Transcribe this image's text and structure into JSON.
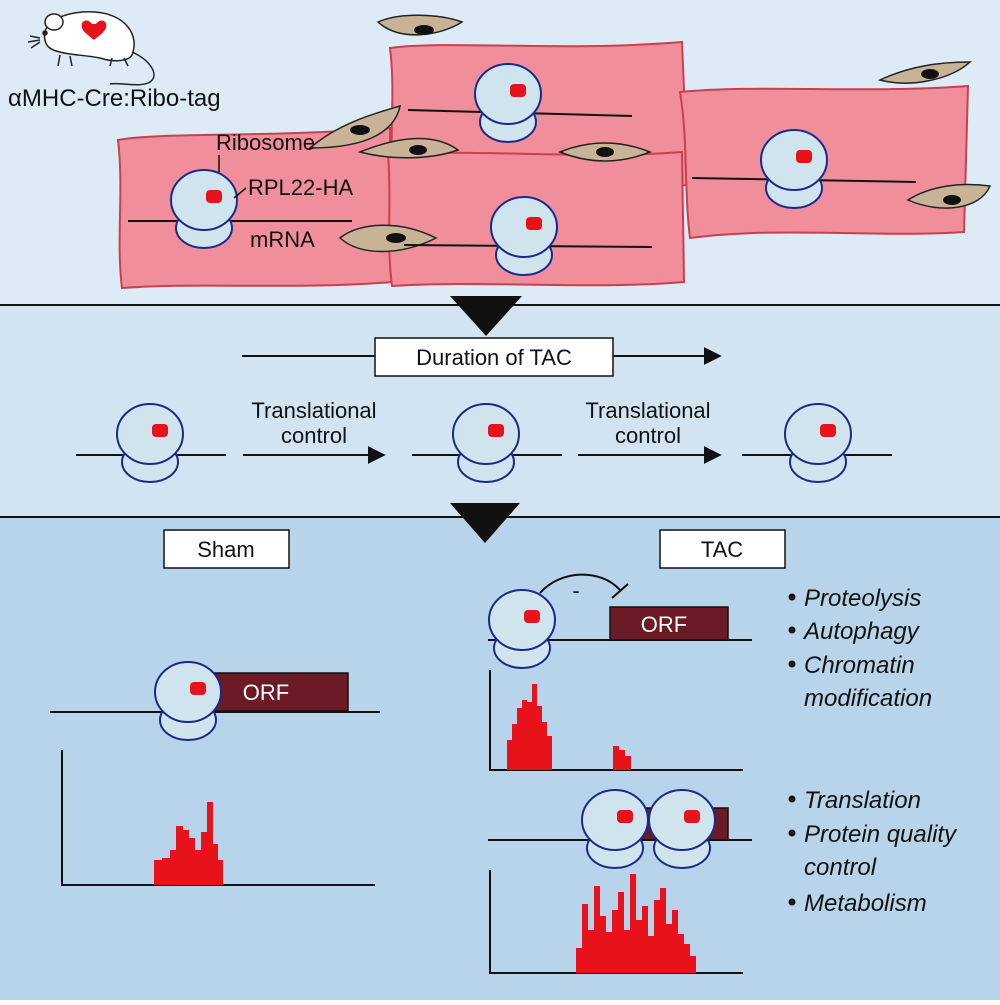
{
  "colors": {
    "panel_top": "#dcebf5",
    "panel_middle": "#d2e4f1",
    "panel_bottom": "#b8d4ea",
    "muscle_cell": "#f08e9b",
    "muscle_cell_border": "#c9404e",
    "fibroblast": "#c8b396",
    "ribosome_fill": "#cfe4ec",
    "ribosome_border": "#1a2a8c",
    "ha_tag": "#e8121b",
    "orf_box": "#6b1a26",
    "footprint_bar": "#e8121b"
  },
  "top_panel": {
    "mouse_label": "αMHC-Cre:Ribo-tag",
    "ribosome_label": "Ribosome",
    "tag_label": "RPL22-HA",
    "mrna_label": "mRNA"
  },
  "middle_panel": {
    "duration_label": "Duration of TAC",
    "step1_line1": "Translational",
    "step1_line2": "control",
    "step2_line1": "Translational",
    "step2_line2": "control"
  },
  "bottom_panel": {
    "sham_label": "Sham",
    "tac_label": "TAC",
    "orf_label": "ORF",
    "inhibition_sign": "-",
    "upper_terms": [
      "Proteolysis",
      "Autophagy",
      "Chromatin",
      "modification"
    ],
    "lower_terms": [
      "Translation",
      "Protein quality",
      "control",
      "Metabolism"
    ]
  },
  "icons": {
    "arrow_down_1": "triangle-down-icon",
    "arrow_down_2": "triangle-down-icon",
    "mouse": "mouse-icon",
    "heart": "heart-icon"
  }
}
